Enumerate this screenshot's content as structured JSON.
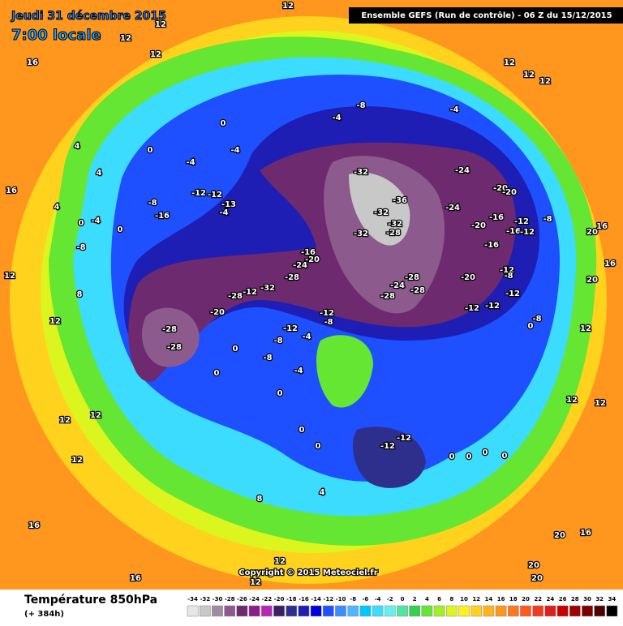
{
  "header": {
    "date": "Jeudi 31 décembre 2015",
    "time": "7:00 locale",
    "run": "Ensemble GEFS  (Run de contrôle)  -  06 Z du 15/12/2015"
  },
  "map": {
    "labels": [
      16,
      12,
      12,
      12,
      12,
      12,
      12,
      12,
      16,
      4,
      4,
      0,
      0,
      -4,
      -4,
      -4,
      -8,
      -4,
      -12,
      -12,
      -13,
      -8,
      -16,
      -4,
      -8,
      4,
      0,
      -4,
      0,
      -32,
      -36,
      -32,
      -32,
      -28,
      -32,
      -24,
      -20,
      -20,
      -24,
      -20,
      -16,
      -12,
      -16,
      -12,
      -8,
      -16,
      -20,
      -24,
      -28,
      -32,
      -12,
      -28,
      -28,
      -24,
      -28,
      -28,
      -20,
      -16,
      -12,
      -8,
      -12,
      -12,
      -12,
      -20,
      -28,
      -28,
      -12,
      -8,
      -12,
      -4,
      -8,
      -8,
      0,
      0,
      -4,
      0,
      0,
      0,
      -12,
      -12,
      0,
      0,
      0,
      0,
      -8,
      0,
      12,
      12,
      12,
      12,
      8,
      12,
      12,
      12,
      12,
      8,
      4,
      12,
      12,
      16,
      16,
      20,
      20,
      20,
      16,
      20,
      16,
      20,
      16
    ],
    "copyright": "Copyright © 2015 Meteociel.fr"
  },
  "legend": {
    "title": "Température 850hPa",
    "subtitle": "(+ 384h)",
    "ticks": [
      -34,
      -32,
      -30,
      -28,
      -26,
      -24,
      -22,
      -20,
      -18,
      -16,
      -14,
      -12,
      -10,
      -8,
      -6,
      -4,
      -2,
      0,
      2,
      4,
      6,
      8,
      10,
      12,
      14,
      16,
      18,
      20,
      22,
      24,
      26,
      28,
      30,
      32,
      34
    ],
    "colors": [
      "#e6e6e6",
      "#c8c8c8",
      "#a08ca0",
      "#8c5a8c",
      "#6e2a6e",
      "#8a1e8a",
      "#b428b4",
      "#3c1e64",
      "#2e2e8c",
      "#1e1eb4",
      "#0000dc",
      "#1e50ff",
      "#3c8cff",
      "#50b4ff",
      "#00c8ff",
      "#3cdcff",
      "#64f0f0",
      "#50e6a0",
      "#32d250",
      "#64e632",
      "#a0f028",
      "#dcf51e",
      "#fff01e",
      "#ffd21e",
      "#ffb41e",
      "#ff961e",
      "#ff781e",
      "#ff5a1e",
      "#f03c1e",
      "#dc1e1e",
      "#c80000",
      "#a00000",
      "#780000",
      "#500000",
      "#000000"
    ]
  }
}
